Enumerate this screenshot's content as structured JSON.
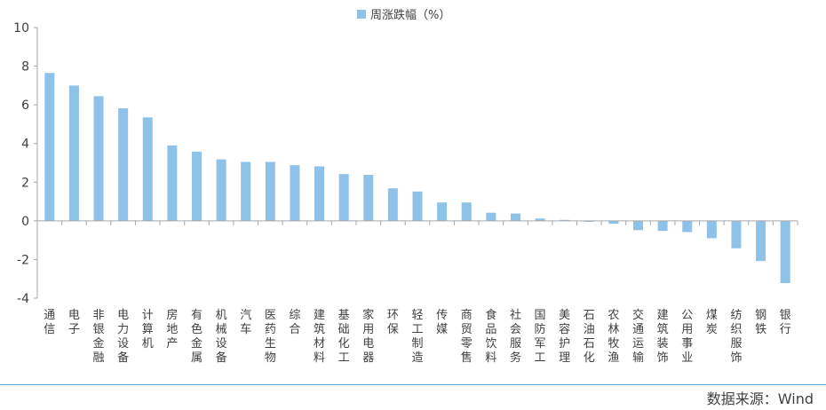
{
  "chart_data": {
    "type": "bar",
    "series": [
      {
        "name": "周涨跌幅（%）",
        "color": "#8fc2e8"
      }
    ],
    "categories": [
      "通信",
      "电子",
      "非银金融",
      "电力设备",
      "计算机",
      "房地产",
      "有色金属",
      "机械设备",
      "汽车",
      "医药生物",
      "综合",
      "建筑材料",
      "基础化工",
      "家用电器",
      "环保",
      "轻工制造",
      "传媒",
      "商贸零售",
      "食品饮料",
      "社会服务",
      "国防军工",
      "美容护理",
      "石油石化",
      "农林牧渔",
      "交通运输",
      "建筑装饰",
      "公用事业",
      "煤炭",
      "纺织服饰",
      "钢铁",
      "银行"
    ],
    "values": [
      7.65,
      7.0,
      6.45,
      5.82,
      5.35,
      3.9,
      3.58,
      3.18,
      3.05,
      3.05,
      2.88,
      2.82,
      2.42,
      2.38,
      1.68,
      1.52,
      0.95,
      0.95,
      0.42,
      0.38,
      0.12,
      0.05,
      -0.05,
      -0.15,
      -0.48,
      -0.52,
      -0.58,
      -0.9,
      -1.42,
      -2.08,
      -3.22
    ],
    "yticks": [
      10,
      8,
      6,
      4,
      2,
      0,
      -2,
      -4
    ],
    "ylim": [
      -4,
      10
    ],
    "grid": false,
    "legend_position": "top-center"
  },
  "source": "数据来源：Wind"
}
